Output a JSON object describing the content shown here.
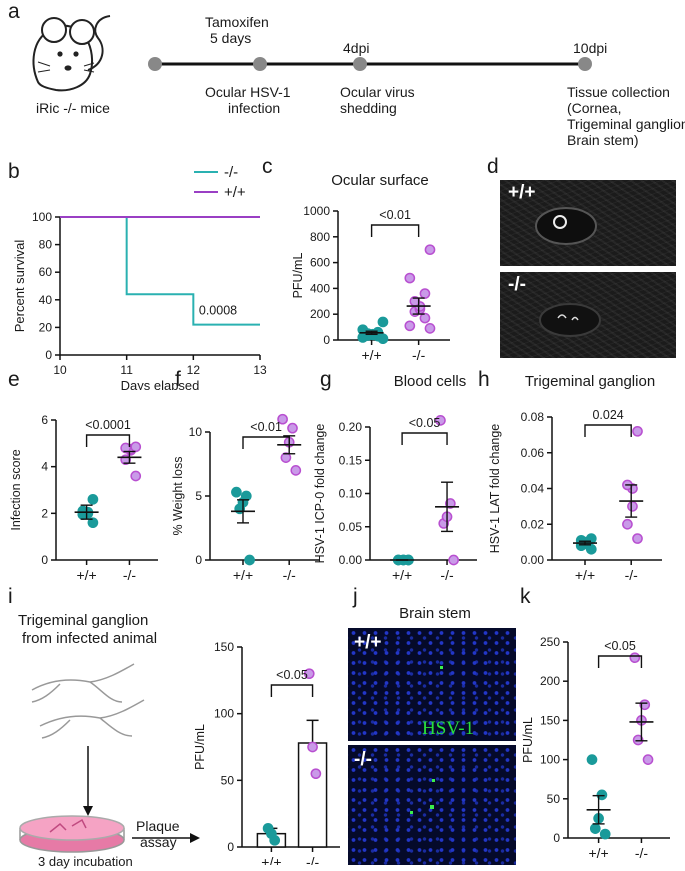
{
  "panels": {
    "a": "a",
    "b": "b",
    "c": "c",
    "d": "d",
    "e": "e",
    "f": "f",
    "g": "g",
    "h": "h",
    "i": "i",
    "j": "j",
    "k": "k"
  },
  "timeline": {
    "mouse_label": "iRic -/- mice",
    "events_top": [
      "Tamoxifen",
      "5 days",
      "4dpi",
      "10dpi"
    ],
    "events_bottom": [
      "Ocular HSV-1",
      "infection",
      "Ocular virus",
      "shedding",
      "Tissue collection",
      "(Cornea,",
      "Trigeminal ganglion,",
      "Brain stem)"
    ]
  },
  "colors": {
    "wt": "#1a9a9a",
    "ko": "#b84fd0",
    "ko_fill": "#c99ae8",
    "line_wt": "#2ab1b1",
    "line_ko": "#9a3fc4"
  },
  "survival": {
    "legend": [
      "-/-",
      "+/+"
    ],
    "annotation": "0.0008"
  },
  "micro_d": {
    "top": "+/+",
    "bottom": "-/-"
  },
  "panel_i": {
    "line1": "Trigeminal ganglion",
    "line2": "from infected animal",
    "incubation": "3 day incubation",
    "assay1": "Plaque",
    "assay2": "assay"
  },
  "panel_j": {
    "title": "Brain stem",
    "top": "+/+",
    "bottom": "-/-",
    "stain": "HSV-1"
  },
  "chart_data": [
    {
      "id": "b",
      "type": "line",
      "title": "",
      "xlabel": "Days elapsed",
      "ylabel": "Percent survival",
      "xlim": [
        10,
        13
      ],
      "ylim": [
        0,
        100
      ],
      "xticks": [
        10,
        11,
        12,
        13
      ],
      "yticks": [
        0,
        20,
        40,
        60,
        80,
        100
      ],
      "series": [
        {
          "name": "-/-",
          "x": [
            10,
            11,
            11,
            12,
            12,
            13
          ],
          "y": [
            100,
            100,
            44,
            44,
            22,
            22
          ]
        },
        {
          "name": "+/+",
          "x": [
            10,
            13
          ],
          "y": [
            100,
            100
          ]
        }
      ],
      "annotation": "0.0008"
    },
    {
      "id": "c",
      "type": "scatter",
      "title": "Ocular surface",
      "ylabel": "PFU/mL",
      "categories": [
        "+/+",
        "-/-"
      ],
      "ylim": [
        0,
        1000
      ],
      "yticks": [
        0,
        200,
        400,
        600,
        800,
        1000
      ],
      "points": [
        [
          10,
          20,
          30,
          35,
          40,
          45,
          50,
          60,
          80,
          140
        ],
        [
          90,
          110,
          170,
          220,
          240,
          260,
          300,
          360,
          480,
          700
        ]
      ],
      "mean": [
        56,
        263
      ],
      "sem": [
        12,
        62
      ],
      "pvalue": "<0.01"
    },
    {
      "id": "e",
      "type": "scatter",
      "title": "",
      "ylabel": "Infection score",
      "categories": [
        "+/+",
        "-/-"
      ],
      "ylim": [
        0,
        6
      ],
      "yticks": [
        0,
        2,
        4,
        6
      ],
      "points": [
        [
          1.6,
          1.95,
          2.0,
          2.05,
          2.1,
          2.6
        ],
        [
          3.6,
          4.3,
          4.7,
          4.75,
          4.8,
          4.85
        ]
      ],
      "mean": [
        2.05,
        4.4
      ],
      "sem": [
        0.3,
        0.25
      ],
      "pvalue": "<0.0001"
    },
    {
      "id": "f",
      "type": "scatter",
      "title": "",
      "ylabel": "% Weight loss",
      "categories": [
        "+/+",
        "-/-"
      ],
      "ylim": [
        0,
        10
      ],
      "yticks": [
        0,
        5,
        10
      ],
      "points": [
        [
          0,
          4,
          4.5,
          5,
          5.3
        ],
        [
          7,
          8,
          9.2,
          10.3,
          11
        ]
      ],
      "mean": [
        3.8,
        9.0
      ],
      "sem": [
        0.9,
        0.7
      ],
      "pvalue": "<0.01"
    },
    {
      "id": "g",
      "type": "scatter",
      "title": "Blood cells",
      "ylabel": "HSV-1 ICP-0 fold change",
      "categories": [
        "+/+",
        "-/-"
      ],
      "ylim": [
        0,
        0.2
      ],
      "yticks": [
        0,
        0.05,
        0.1,
        0.15,
        0.2
      ],
      "points": [
        [
          0,
          0,
          0,
          0,
          0,
          0
        ],
        [
          0,
          0.055,
          0.065,
          0.085,
          0.21
        ]
      ],
      "mean": [
        0,
        0.08
      ],
      "sem": [
        0,
        0.037
      ],
      "pvalue": "<0.05"
    },
    {
      "id": "h",
      "type": "scatter",
      "title": "Trigeminal ganglion",
      "ylabel": "HSV-1 LAT fold change",
      "categories": [
        "+/+",
        "-/-"
      ],
      "ylim": [
        0,
        0.08
      ],
      "yticks": [
        0,
        0.02,
        0.04,
        0.06,
        0.08
      ],
      "points": [
        [
          0.006,
          0.008,
          0.009,
          0.01,
          0.011,
          0.012
        ],
        [
          0.012,
          0.02,
          0.03,
          0.04,
          0.042,
          0.072
        ]
      ],
      "mean": [
        0.0095,
        0.033
      ],
      "sem": [
        0.001,
        0.009
      ],
      "pvalue": "0.024"
    },
    {
      "id": "i",
      "type": "bar",
      "title": "",
      "ylabel": "PFU/mL",
      "categories": [
        "+/+",
        "-/-"
      ],
      "ylim": [
        0,
        150
      ],
      "yticks": [
        0,
        50,
        100,
        150
      ],
      "values": [
        10,
        78
      ],
      "sem": [
        4,
        17
      ],
      "points": [
        [
          5,
          10,
          14
        ],
        [
          55,
          75,
          130
        ]
      ],
      "pvalue": "<0.05"
    },
    {
      "id": "k",
      "type": "scatter",
      "title": "",
      "ylabel": "PFU/mL",
      "categories": [
        "+/+",
        "-/-"
      ],
      "ylim": [
        0,
        250
      ],
      "yticks": [
        0,
        50,
        100,
        150,
        200,
        250
      ],
      "points": [
        [
          5,
          12,
          25,
          55,
          100
        ],
        [
          100,
          125,
          150,
          170,
          230
        ]
      ],
      "mean": [
        36,
        148
      ],
      "sem": [
        18,
        24
      ],
      "pvalue": "<0.05"
    }
  ]
}
